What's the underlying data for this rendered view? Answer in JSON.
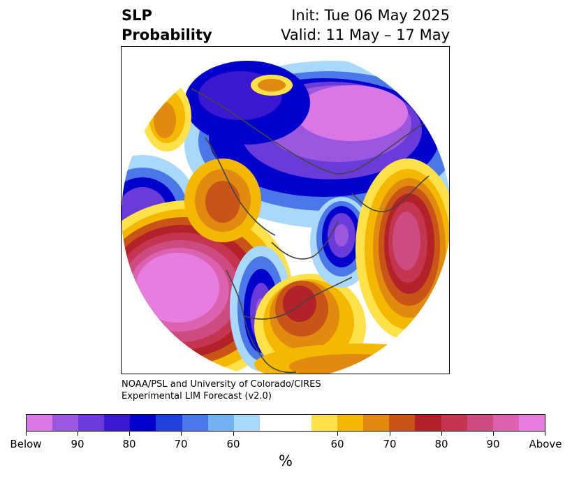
{
  "title": {
    "left_line1": "SLP",
    "left_line2": "Probability",
    "right_line1": "Init: Tue 06 May 2025",
    "right_line2": "Valid: 11 May – 17 May"
  },
  "credit": {
    "line1": "NOAA/PSL and University of Colorado/CIRES",
    "line2": "Experimental LIM Forecast (v2.0)"
  },
  "colorbar": {
    "colors": [
      "#d977e6",
      "#9b57e0",
      "#6a3bd8",
      "#3a18cf",
      "#0000cc",
      "#2040dd",
      "#4a78e8",
      "#72b2f2",
      "#aad8fb",
      "#ffffff",
      "#ffffff",
      "#ffe14a",
      "#f5b800",
      "#e08a10",
      "#c85418",
      "#b22228",
      "#c43550",
      "#cc4c80",
      "#dc62b0",
      "#e67ee0"
    ],
    "tick_labels": [
      "Below",
      "90",
      "80",
      "70",
      "60",
      "60",
      "70",
      "80",
      "90",
      "Above"
    ],
    "unit": "%"
  },
  "map": {
    "projection": "north-polar-stereographic",
    "field": "SLP probability"
  }
}
